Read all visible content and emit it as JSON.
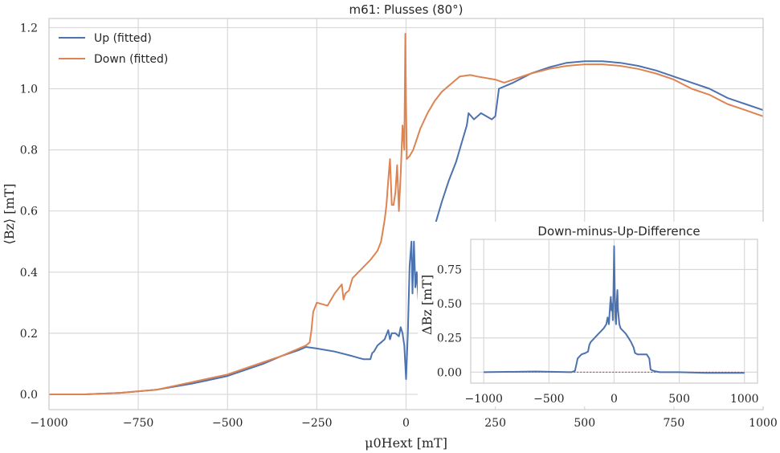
{
  "chart_data": [
    {
      "type": "line",
      "title": "m61: Plusses (80°)",
      "xlabel": "μ0Hext [mT]",
      "ylabel": "⟨Bz⟩ [mT]",
      "xlim": [
        -1000,
        1000
      ],
      "ylim": [
        -0.05,
        1.23
      ],
      "xticks": [
        -1000,
        -750,
        -500,
        -250,
        0,
        250,
        500,
        750,
        1000
      ],
      "xtick_labels": [
        "−1000",
        "−750",
        "−500",
        "−250",
        "0",
        "250",
        "500",
        "750",
        "1000"
      ],
      "yticks": [
        0.0,
        0.2,
        0.4,
        0.6,
        0.8,
        1.0,
        1.2
      ],
      "ytick_labels": [
        "0.0",
        "0.2",
        "0.4",
        "0.6",
        "0.8",
        "1.0",
        "1.2"
      ],
      "grid": true,
      "legend_position": "top-left",
      "series": [
        {
          "name": "Up (fitted)",
          "color": "#4c72b0",
          "points": [
            [
              -1000,
              0.0
            ],
            [
              -900,
              0.0
            ],
            [
              -800,
              0.005
            ],
            [
              -700,
              0.015
            ],
            [
              -600,
              0.035
            ],
            [
              -500,
              0.06
            ],
            [
              -400,
              0.1
            ],
            [
              -350,
              0.125
            ],
            [
              -300,
              0.145
            ],
            [
              -280,
              0.155
            ],
            [
              -250,
              0.15
            ],
            [
              -200,
              0.14
            ],
            [
              -150,
              0.125
            ],
            [
              -120,
              0.115
            ],
            [
              -100,
              0.115
            ],
            [
              -95,
              0.135
            ],
            [
              -90,
              0.14
            ],
            [
              -80,
              0.16
            ],
            [
              -70,
              0.17
            ],
            [
              -60,
              0.18
            ],
            [
              -50,
              0.21
            ],
            [
              -45,
              0.18
            ],
            [
              -40,
              0.2
            ],
            [
              -30,
              0.2
            ],
            [
              -20,
              0.19
            ],
            [
              -15,
              0.22
            ],
            [
              -10,
              0.2
            ],
            [
              -5,
              0.16
            ],
            [
              0,
              0.05
            ],
            [
              5,
              0.2
            ],
            [
              10,
              0.42
            ],
            [
              15,
              0.5
            ],
            [
              18,
              0.33
            ],
            [
              22,
              0.5
            ],
            [
              26,
              0.35
            ],
            [
              30,
              0.4
            ],
            [
              35,
              0.3
            ],
            [
              45,
              0.38
            ],
            [
              50,
              0.42
            ],
            [
              60,
              0.45
            ],
            [
              80,
              0.55
            ],
            [
              100,
              0.63
            ],
            [
              120,
              0.7
            ],
            [
              140,
              0.76
            ],
            [
              160,
              0.84
            ],
            [
              170,
              0.88
            ],
            [
              175,
              0.92
            ],
            [
              190,
              0.9
            ],
            [
              210,
              0.92
            ],
            [
              240,
              0.9
            ],
            [
              250,
              0.91
            ],
            [
              260,
              1.0
            ],
            [
              280,
              1.01
            ],
            [
              300,
              1.02
            ],
            [
              350,
              1.05
            ],
            [
              400,
              1.07
            ],
            [
              450,
              1.085
            ],
            [
              500,
              1.09
            ],
            [
              550,
              1.09
            ],
            [
              600,
              1.085
            ],
            [
              650,
              1.075
            ],
            [
              700,
              1.06
            ],
            [
              750,
              1.04
            ],
            [
              800,
              1.02
            ],
            [
              850,
              1.0
            ],
            [
              900,
              0.97
            ],
            [
              950,
              0.95
            ],
            [
              1000,
              0.93
            ]
          ]
        },
        {
          "name": "Down (fitted)",
          "color": "#dd8452",
          "points": [
            [
              -1000,
              0.0
            ],
            [
              -900,
              0.0
            ],
            [
              -800,
              0.005
            ],
            [
              -700,
              0.015
            ],
            [
              -600,
              0.04
            ],
            [
              -500,
              0.065
            ],
            [
              -400,
              0.105
            ],
            [
              -350,
              0.125
            ],
            [
              -300,
              0.15
            ],
            [
              -280,
              0.16
            ],
            [
              -270,
              0.17
            ],
            [
              -265,
              0.21
            ],
            [
              -260,
              0.27
            ],
            [
              -250,
              0.3
            ],
            [
              -220,
              0.29
            ],
            [
              -200,
              0.33
            ],
            [
              -180,
              0.36
            ],
            [
              -175,
              0.31
            ],
            [
              -170,
              0.33
            ],
            [
              -160,
              0.34
            ],
            [
              -150,
              0.38
            ],
            [
              -100,
              0.44
            ],
            [
              -80,
              0.47
            ],
            [
              -70,
              0.5
            ],
            [
              -60,
              0.57
            ],
            [
              -55,
              0.62
            ],
            [
              -50,
              0.7
            ],
            [
              -45,
              0.77
            ],
            [
              -40,
              0.62
            ],
            [
              -35,
              0.62
            ],
            [
              -30,
              0.66
            ],
            [
              -25,
              0.75
            ],
            [
              -20,
              0.6
            ],
            [
              -15,
              0.72
            ],
            [
              -10,
              0.88
            ],
            [
              -5,
              0.8
            ],
            [
              -2,
              1.18
            ],
            [
              0,
              0.95
            ],
            [
              2,
              0.77
            ],
            [
              10,
              0.78
            ],
            [
              20,
              0.8
            ],
            [
              40,
              0.87
            ],
            [
              60,
              0.92
            ],
            [
              80,
              0.96
            ],
            [
              100,
              0.99
            ],
            [
              120,
              1.01
            ],
            [
              140,
              1.03
            ],
            [
              150,
              1.04
            ],
            [
              180,
              1.045
            ],
            [
              200,
              1.04
            ],
            [
              250,
              1.03
            ],
            [
              275,
              1.02
            ],
            [
              300,
              1.03
            ],
            [
              350,
              1.05
            ],
            [
              400,
              1.065
            ],
            [
              450,
              1.075
            ],
            [
              500,
              1.08
            ],
            [
              550,
              1.08
            ],
            [
              600,
              1.075
            ],
            [
              650,
              1.065
            ],
            [
              700,
              1.05
            ],
            [
              750,
              1.03
            ],
            [
              800,
              1.0
            ],
            [
              850,
              0.98
            ],
            [
              900,
              0.95
            ],
            [
              950,
              0.93
            ],
            [
              1000,
              0.91
            ]
          ]
        }
      ]
    },
    {
      "type": "line",
      "title": "Down-minus-Up-Difference",
      "ylabel": "ΔBz [mT]",
      "xlim": [
        -1100,
        1100
      ],
      "ylim": [
        -0.08,
        0.97
      ],
      "xticks": [
        -1000,
        -500,
        0,
        500,
        1000
      ],
      "xtick_labels": [
        "−1000",
        "−500",
        "0",
        "500",
        "1000"
      ],
      "yticks": [
        0.0,
        0.25,
        0.5,
        0.75
      ],
      "ytick_labels": [
        "0.00",
        "0.25",
        "0.50",
        "0.75"
      ],
      "grid": true,
      "reference_line": {
        "y": 0.0,
        "color": "#d62728"
      },
      "series": [
        {
          "color": "#4c72b0",
          "points": [
            [
              -1000,
              0.0
            ],
            [
              -600,
              0.005
            ],
            [
              -330,
              0.0
            ],
            [
              -300,
              0.01
            ],
            [
              -280,
              0.1
            ],
            [
              -250,
              0.13
            ],
            [
              -220,
              0.14
            ],
            [
              -200,
              0.15
            ],
            [
              -190,
              0.2
            ],
            [
              -180,
              0.22
            ],
            [
              -150,
              0.25
            ],
            [
              -120,
              0.28
            ],
            [
              -100,
              0.3
            ],
            [
              -80,
              0.32
            ],
            [
              -60,
              0.35
            ],
            [
              -50,
              0.4
            ],
            [
              -40,
              0.35
            ],
            [
              -30,
              0.5
            ],
            [
              -25,
              0.55
            ],
            [
              -20,
              0.45
            ],
            [
              -15,
              0.5
            ],
            [
              -10,
              0.38
            ],
            [
              -5,
              0.6
            ],
            [
              0,
              0.92
            ],
            [
              5,
              0.6
            ],
            [
              10,
              0.4
            ],
            [
              15,
              0.35
            ],
            [
              20,
              0.5
            ],
            [
              25,
              0.6
            ],
            [
              30,
              0.45
            ],
            [
              40,
              0.35
            ],
            [
              50,
              0.32
            ],
            [
              70,
              0.3
            ],
            [
              90,
              0.28
            ],
            [
              110,
              0.25
            ],
            [
              130,
              0.22
            ],
            [
              150,
              0.18
            ],
            [
              160,
              0.14
            ],
            [
              180,
              0.13
            ],
            [
              200,
              0.13
            ],
            [
              250,
              0.13
            ],
            [
              270,
              0.1
            ],
            [
              280,
              0.02
            ],
            [
              300,
              0.01
            ],
            [
              350,
              0.0
            ],
            [
              500,
              0.0
            ],
            [
              700,
              -0.005
            ],
            [
              1000,
              -0.005
            ]
          ]
        }
      ]
    }
  ]
}
